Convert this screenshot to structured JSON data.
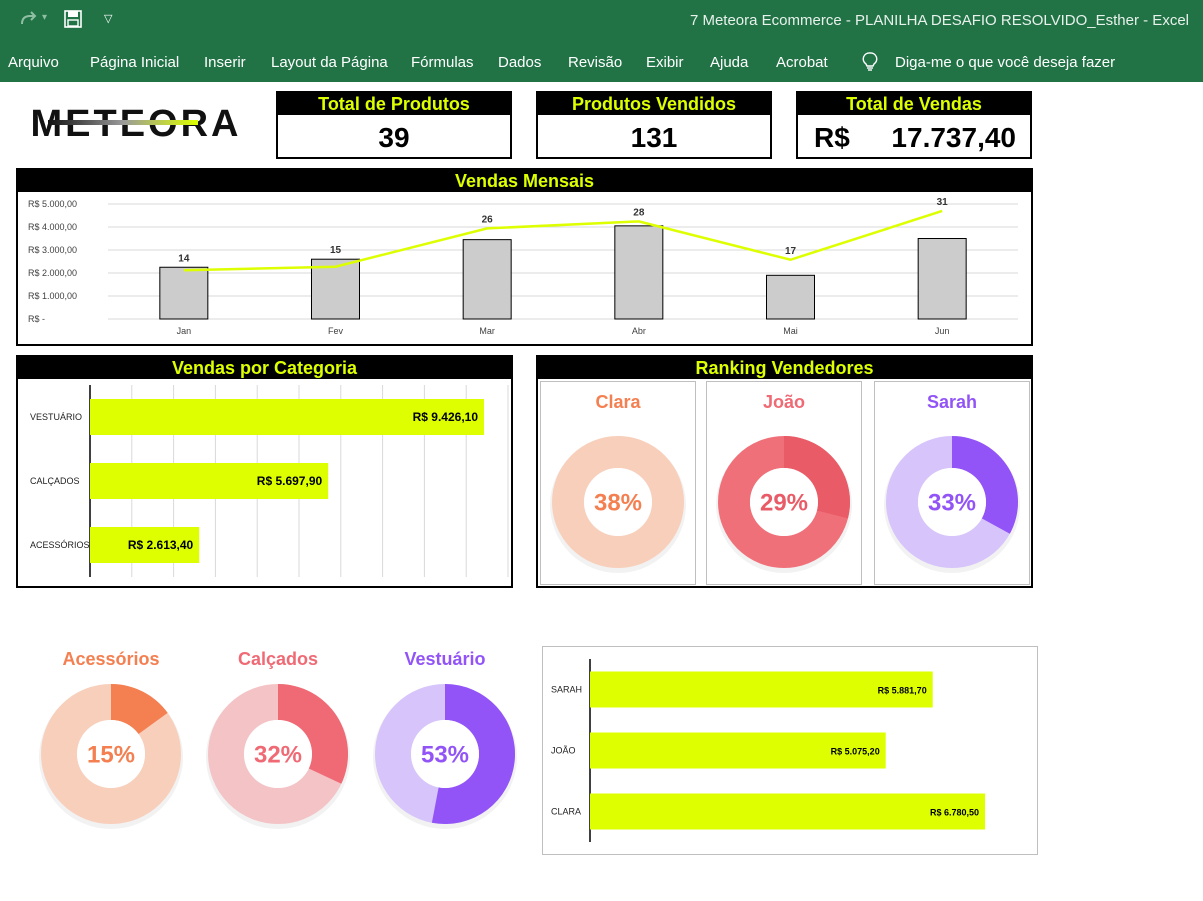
{
  "window": {
    "title": "7 Meteora Ecommerce  -  PLANILHA DESAFIO RESOLVIDO_Esther  -  Excel",
    "redo_icon": "redo-icon",
    "save_icon": "save-icon",
    "customize_icon": "dropdown-caret-icon"
  },
  "ribbon": {
    "tabs": [
      "Arquivo",
      "Página Inicial",
      "Inserir",
      "Layout da Página",
      "Fórmulas",
      "Dados",
      "Revisão",
      "Exibir",
      "Ajuda",
      "Acrobat"
    ],
    "tellme_icon": "lightbulb-icon",
    "tellme": "Diga-me o que você deseja fazer"
  },
  "logo": {
    "text": "METEORA"
  },
  "kpis": {
    "produtos": {
      "label": "Total de Produtos",
      "value": "39"
    },
    "vendidos": {
      "label": "Produtos Vendidos",
      "value": "131"
    },
    "vendas": {
      "label": "Total de Vendas",
      "currency": "R$",
      "value": "17.737,40"
    }
  },
  "colors": {
    "accent": "#ddff00",
    "clara": "#f47f50",
    "joao": "#ef6a74",
    "sarah": "#9254f7",
    "header_bg": "#000000",
    "excel_green": "#217346"
  },
  "chart_data": [
    {
      "type": "bar",
      "title": "Vendas Mensais",
      "categories": [
        "Jan",
        "Fev",
        "Mar",
        "Abr",
        "Mai",
        "Jun"
      ],
      "y_ticks": [
        "R$ 5.000,00",
        "R$ 4.000,00",
        "R$ 3.000,00",
        "R$ 2.000,00",
        "R$ 1.000,00",
        "R$ -"
      ],
      "ylim": [
        0,
        5000
      ],
      "series": [
        {
          "type": "bar",
          "values": [
            2250,
            2600,
            3450,
            4050,
            1900,
            3500
          ]
        },
        {
          "type": "line",
          "values": [
            14,
            15,
            26,
            28,
            17,
            31
          ],
          "labels": [
            "14",
            "15",
            "26",
            "28",
            "17",
            "31"
          ]
        }
      ]
    },
    {
      "type": "bar",
      "orientation": "horizontal",
      "title": "Vendas por Categoria",
      "categories": [
        "VESTUÁRIO",
        "CALÇADOS",
        "ACESSÓRIOS"
      ],
      "values": [
        9426.1,
        5697.9,
        2613.4
      ],
      "labels": [
        "R$ 9.426,10",
        "R$ 5.697,90",
        "R$ 2.613,40"
      ]
    },
    {
      "type": "pie",
      "title": "Ranking Vendedores",
      "charts": [
        {
          "name": "Clara",
          "pct": 38,
          "label": "38%"
        },
        {
          "name": "João",
          "pct": 29,
          "label": "29%"
        },
        {
          "name": "Sarah",
          "pct": 33,
          "label": "33%"
        }
      ]
    },
    {
      "type": "pie",
      "charts": [
        {
          "name": "Acessórios",
          "pct": 15,
          "label": "15%"
        },
        {
          "name": "Calçados",
          "pct": 32,
          "label": "32%"
        },
        {
          "name": "Vestuário",
          "pct": 53,
          "label": "53%"
        }
      ]
    },
    {
      "type": "bar",
      "orientation": "horizontal",
      "categories": [
        "SARAH",
        "JOÃO",
        "CLARA"
      ],
      "values": [
        5881.7,
        5075.2,
        6780.5
      ],
      "labels": [
        "R$ 5.881,70",
        "R$ 5.075,20",
        "R$ 6.780,50"
      ]
    }
  ]
}
